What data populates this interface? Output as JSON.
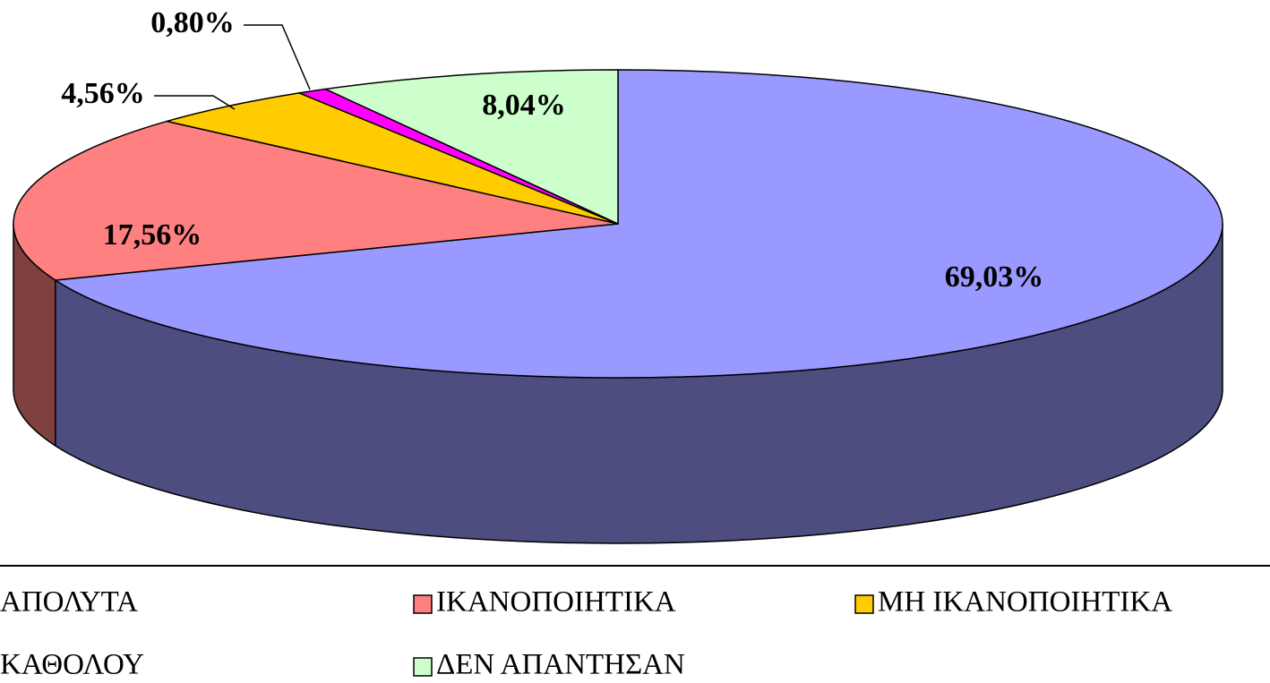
{
  "chart_data": {
    "type": "pie3d",
    "categories": [
      "ΑΠΟΛΥΤΑ",
      "ΙΚΑΝΟΠΟΙΗΤΙΚΑ",
      "ΜΗ ΙΚΑΝΟΠΟΙΗΤΙΚΑ",
      "ΚΑΘΟΛΟΥ",
      "ΔΕΝ ΑΠΑΝΤΗΣΑΝ"
    ],
    "values": [
      69.03,
      17.56,
      4.56,
      0.8,
      8.04
    ],
    "value_labels": [
      "69,03%",
      "17,56%",
      "4,56%",
      "0,80%",
      "8,04%"
    ],
    "colors": [
      "#9999ff",
      "#ff8080",
      "#ffcc00",
      "#ff00ff",
      "#ccffcc"
    ],
    "side_colors": [
      "#4d4d7f",
      "#7f4040",
      "#806600",
      "#800080",
      "#668066"
    ],
    "legend": "bottom"
  }
}
